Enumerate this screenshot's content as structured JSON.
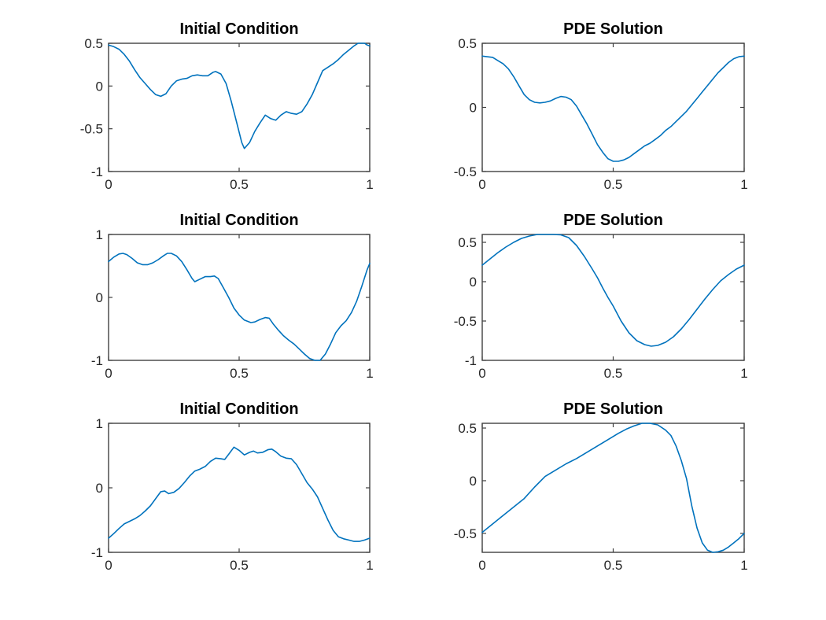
{
  "figure": {
    "background": "#ffffff"
  },
  "colors": {
    "line": "#0072BD",
    "axis_box": "#404040",
    "tick_label": "#262626",
    "title": "#000000"
  },
  "chart_data": [
    {
      "type": "line",
      "title": "Initial Condition",
      "xlabel": "",
      "ylabel": "",
      "grid": false,
      "legend": null,
      "xlim": [
        0,
        1
      ],
      "ylim": [
        -1,
        0.5
      ],
      "xticks": [
        0,
        0.5,
        1
      ],
      "xtick_labels": [
        "0",
        "0.5",
        "1"
      ],
      "yticks": [
        0.5,
        0,
        -0.5,
        -1
      ],
      "ytick_labels": [
        "0.5",
        "0",
        "-0.5",
        "-1"
      ],
      "x": [
        0,
        0.02,
        0.04,
        0.06,
        0.08,
        0.1,
        0.12,
        0.14,
        0.16,
        0.18,
        0.2,
        0.22,
        0.24,
        0.26,
        0.28,
        0.3,
        0.32,
        0.34,
        0.36,
        0.38,
        0.4,
        0.41,
        0.43,
        0.45,
        0.47,
        0.49,
        0.51,
        0.52,
        0.54,
        0.56,
        0.58,
        0.6,
        0.62,
        0.64,
        0.66,
        0.68,
        0.7,
        0.72,
        0.74,
        0.76,
        0.78,
        0.8,
        0.82,
        0.84,
        0.86,
        0.88,
        0.9,
        0.92,
        0.94,
        0.955,
        0.97,
        0.98,
        0.99,
        1.0
      ],
      "y": [
        0.48,
        0.46,
        0.43,
        0.37,
        0.29,
        0.19,
        0.1,
        0.03,
        -0.04,
        -0.1,
        -0.12,
        -0.09,
        0.0,
        0.06,
        0.08,
        0.09,
        0.12,
        0.13,
        0.12,
        0.12,
        0.16,
        0.17,
        0.14,
        0.03,
        -0.18,
        -0.42,
        -0.66,
        -0.73,
        -0.66,
        -0.53,
        -0.43,
        -0.34,
        -0.38,
        -0.4,
        -0.34,
        -0.3,
        -0.32,
        -0.33,
        -0.3,
        -0.21,
        -0.1,
        0.04,
        0.18,
        0.22,
        0.26,
        0.31,
        0.37,
        0.42,
        0.47,
        0.5,
        0.5,
        0.5,
        0.48,
        0.47
      ]
    },
    {
      "type": "line",
      "title": "PDE Solution",
      "xlabel": "",
      "ylabel": "",
      "grid": false,
      "legend": null,
      "xlim": [
        0,
        1
      ],
      "ylim": [
        -0.5,
        0.5
      ],
      "xticks": [
        0,
        0.5,
        1
      ],
      "xtick_labels": [
        "0",
        "0.5",
        "1"
      ],
      "yticks": [
        0.5,
        0,
        -0.5
      ],
      "ytick_labels": [
        "0.5",
        "0",
        "-0.5"
      ],
      "x": [
        0,
        0.04,
        0.08,
        0.1,
        0.12,
        0.14,
        0.16,
        0.18,
        0.2,
        0.22,
        0.24,
        0.26,
        0.28,
        0.3,
        0.32,
        0.34,
        0.36,
        0.38,
        0.4,
        0.42,
        0.44,
        0.46,
        0.48,
        0.5,
        0.52,
        0.54,
        0.56,
        0.58,
        0.6,
        0.62,
        0.64,
        0.66,
        0.68,
        0.7,
        0.72,
        0.74,
        0.76,
        0.78,
        0.8,
        0.82,
        0.84,
        0.86,
        0.88,
        0.9,
        0.92,
        0.94,
        0.96,
        0.98,
        1.0
      ],
      "y": [
        0.4,
        0.39,
        0.34,
        0.3,
        0.24,
        0.17,
        0.1,
        0.06,
        0.04,
        0.035,
        0.04,
        0.05,
        0.07,
        0.085,
        0.08,
        0.06,
        0.01,
        -0.06,
        -0.13,
        -0.21,
        -0.29,
        -0.35,
        -0.4,
        -0.42,
        -0.42,
        -0.41,
        -0.39,
        -0.36,
        -0.33,
        -0.3,
        -0.28,
        -0.25,
        -0.22,
        -0.18,
        -0.15,
        -0.11,
        -0.07,
        -0.03,
        0.02,
        0.07,
        0.12,
        0.17,
        0.22,
        0.27,
        0.31,
        0.35,
        0.38,
        0.395,
        0.4
      ]
    },
    {
      "type": "line",
      "title": "Initial Condition",
      "xlabel": "",
      "ylabel": "",
      "grid": false,
      "legend": null,
      "xlim": [
        0,
        1
      ],
      "ylim": [
        -1,
        1
      ],
      "xticks": [
        0,
        0.5,
        1
      ],
      "xtick_labels": [
        "0",
        "0.5",
        "1"
      ],
      "yticks": [
        1,
        0,
        -1
      ],
      "ytick_labels": [
        "1",
        "0",
        "-1"
      ],
      "x": [
        0,
        0.02,
        0.04,
        0.055,
        0.07,
        0.09,
        0.11,
        0.13,
        0.15,
        0.17,
        0.19,
        0.21,
        0.225,
        0.24,
        0.26,
        0.28,
        0.3,
        0.32,
        0.33,
        0.35,
        0.37,
        0.39,
        0.405,
        0.42,
        0.44,
        0.46,
        0.48,
        0.5,
        0.52,
        0.545,
        0.56,
        0.58,
        0.6,
        0.615,
        0.63,
        0.65,
        0.67,
        0.69,
        0.71,
        0.73,
        0.75,
        0.77,
        0.79,
        0.81,
        0.83,
        0.85,
        0.87,
        0.89,
        0.91,
        0.93,
        0.95,
        0.97,
        0.99,
        1.0
      ],
      "y": [
        0.57,
        0.64,
        0.69,
        0.7,
        0.68,
        0.62,
        0.55,
        0.52,
        0.52,
        0.55,
        0.6,
        0.66,
        0.7,
        0.7,
        0.66,
        0.57,
        0.44,
        0.3,
        0.25,
        0.29,
        0.33,
        0.33,
        0.34,
        0.3,
        0.15,
        0.0,
        -0.17,
        -0.28,
        -0.36,
        -0.4,
        -0.39,
        -0.35,
        -0.32,
        -0.33,
        -0.42,
        -0.52,
        -0.61,
        -0.68,
        -0.74,
        -0.82,
        -0.9,
        -0.97,
        -1.0,
        -1.0,
        -0.9,
        -0.74,
        -0.56,
        -0.45,
        -0.37,
        -0.24,
        -0.06,
        0.18,
        0.44,
        0.54
      ]
    },
    {
      "type": "line",
      "title": "PDE Solution",
      "xlabel": "",
      "ylabel": "",
      "grid": false,
      "legend": null,
      "xlim": [
        0,
        1
      ],
      "ylim": [
        -1,
        0.6
      ],
      "xticks": [
        0,
        0.5,
        1
      ],
      "xtick_labels": [
        "0",
        "0.5",
        "1"
      ],
      "yticks": [
        0.5,
        0,
        -0.5,
        -1
      ],
      "ytick_labels": [
        "0.5",
        "0",
        "-0.5",
        "-1"
      ],
      "x": [
        0,
        0.03,
        0.06,
        0.09,
        0.12,
        0.15,
        0.18,
        0.21,
        0.24,
        0.27,
        0.3,
        0.33,
        0.36,
        0.39,
        0.42,
        0.44,
        0.46,
        0.48,
        0.5,
        0.53,
        0.56,
        0.59,
        0.62,
        0.645,
        0.67,
        0.7,
        0.73,
        0.76,
        0.79,
        0.82,
        0.85,
        0.88,
        0.91,
        0.94,
        0.97,
        1.0
      ],
      "y": [
        0.21,
        0.29,
        0.37,
        0.44,
        0.5,
        0.55,
        0.58,
        0.6,
        0.6,
        0.6,
        0.595,
        0.56,
        0.46,
        0.32,
        0.16,
        0.05,
        -0.08,
        -0.2,
        -0.31,
        -0.5,
        -0.65,
        -0.75,
        -0.8,
        -0.82,
        -0.81,
        -0.77,
        -0.7,
        -0.6,
        -0.48,
        -0.35,
        -0.22,
        -0.1,
        0.01,
        0.09,
        0.16,
        0.21
      ]
    },
    {
      "type": "line",
      "title": "Initial Condition",
      "xlabel": "",
      "ylabel": "",
      "grid": false,
      "legend": null,
      "xlim": [
        0,
        1
      ],
      "ylim": [
        -1,
        1
      ],
      "xticks": [
        0,
        0.5,
        1
      ],
      "xtick_labels": [
        "0",
        "0.5",
        "1"
      ],
      "yticks": [
        1,
        0,
        -1
      ],
      "ytick_labels": [
        "1",
        "0",
        "-1"
      ],
      "x": [
        0,
        0.02,
        0.04,
        0.06,
        0.08,
        0.1,
        0.12,
        0.14,
        0.16,
        0.18,
        0.2,
        0.215,
        0.23,
        0.25,
        0.27,
        0.29,
        0.31,
        0.33,
        0.35,
        0.37,
        0.39,
        0.41,
        0.43,
        0.445,
        0.46,
        0.48,
        0.5,
        0.52,
        0.54,
        0.555,
        0.57,
        0.59,
        0.61,
        0.625,
        0.64,
        0.66,
        0.68,
        0.7,
        0.72,
        0.74,
        0.76,
        0.78,
        0.8,
        0.82,
        0.84,
        0.86,
        0.88,
        0.9,
        0.92,
        0.94,
        0.96,
        0.98,
        1.0
      ],
      "y": [
        -0.78,
        -0.71,
        -0.63,
        -0.56,
        -0.52,
        -0.48,
        -0.43,
        -0.36,
        -0.28,
        -0.17,
        -0.06,
        -0.05,
        -0.09,
        -0.07,
        -0.01,
        0.08,
        0.18,
        0.26,
        0.29,
        0.33,
        0.41,
        0.46,
        0.45,
        0.44,
        0.52,
        0.63,
        0.58,
        0.51,
        0.55,
        0.57,
        0.54,
        0.55,
        0.59,
        0.6,
        0.56,
        0.49,
        0.46,
        0.45,
        0.36,
        0.22,
        0.08,
        -0.02,
        -0.14,
        -0.32,
        -0.5,
        -0.66,
        -0.76,
        -0.79,
        -0.81,
        -0.83,
        -0.83,
        -0.81,
        -0.78
      ]
    },
    {
      "type": "line",
      "title": "PDE Solution",
      "xlabel": "",
      "ylabel": "",
      "grid": false,
      "legend": null,
      "xlim": [
        0,
        1
      ],
      "ylim": [
        -0.68,
        0.545
      ],
      "xticks": [
        0,
        0.5,
        1
      ],
      "xtick_labels": [
        "0",
        "0.5",
        "1"
      ],
      "yticks": [
        0.5,
        0,
        -0.5
      ],
      "ytick_labels": [
        "0.5",
        "0",
        "-0.5"
      ],
      "x": [
        0,
        0.04,
        0.08,
        0.12,
        0.16,
        0.2,
        0.24,
        0.28,
        0.32,
        0.36,
        0.4,
        0.44,
        0.48,
        0.52,
        0.55,
        0.58,
        0.61,
        0.64,
        0.67,
        0.7,
        0.72,
        0.74,
        0.76,
        0.78,
        0.8,
        0.82,
        0.84,
        0.86,
        0.88,
        0.9,
        0.92,
        0.94,
        0.96,
        0.98,
        1.0
      ],
      "y": [
        -0.49,
        -0.41,
        -0.33,
        -0.25,
        -0.17,
        -0.06,
        0.04,
        0.1,
        0.16,
        0.21,
        0.27,
        0.33,
        0.39,
        0.45,
        0.49,
        0.52,
        0.545,
        0.545,
        0.53,
        0.48,
        0.43,
        0.33,
        0.19,
        0.02,
        -0.24,
        -0.45,
        -0.59,
        -0.66,
        -0.68,
        -0.675,
        -0.66,
        -0.63,
        -0.59,
        -0.55,
        -0.5
      ]
    }
  ]
}
